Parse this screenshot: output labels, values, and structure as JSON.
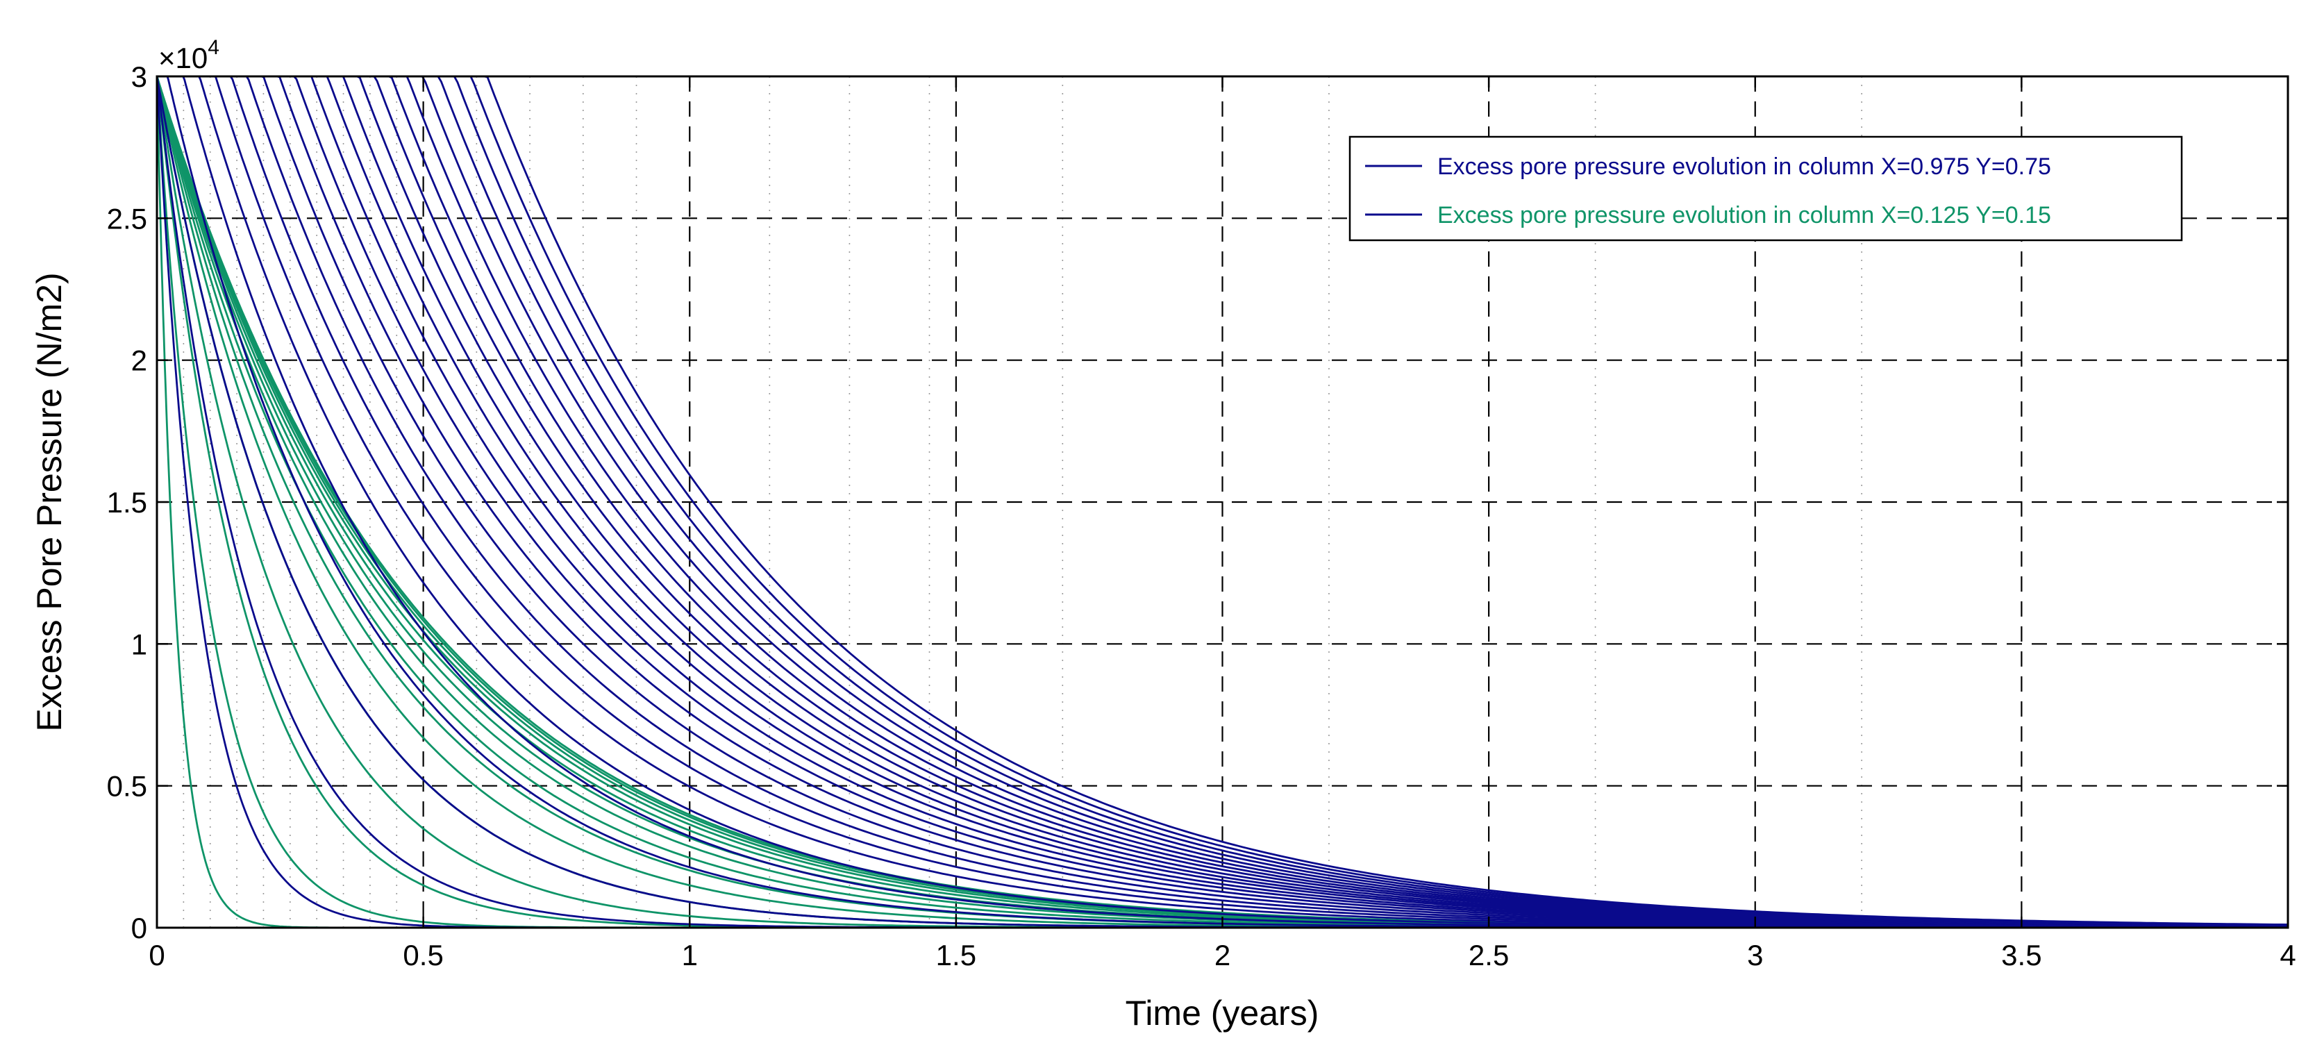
{
  "chart_data": {
    "type": "line",
    "title": "",
    "xlabel": "Time (years)",
    "ylabel": "Excess Pore Pressure (N/m2)",
    "xlim": [
      0,
      4
    ],
    "ylim": [
      0,
      30000
    ],
    "y_exponent_label": "×10",
    "y_exponent_power": "4",
    "xticks": [
      0,
      0.5,
      1,
      1.5,
      2,
      2.5,
      3,
      3.5,
      4
    ],
    "xtick_labels": [
      "0",
      "0.5",
      "1",
      "1.5",
      "2",
      "2.5",
      "3",
      "3.5",
      "4"
    ],
    "yticks": [
      0,
      5000,
      10000,
      15000,
      20000,
      25000,
      30000
    ],
    "ytick_labels": [
      "0",
      "0.5",
      "1",
      "1.5",
      "2",
      "2.5",
      "3"
    ],
    "x_minor_ticks": [
      0.05,
      0.1,
      0.15,
      0.2,
      0.25,
      0.3,
      0.35,
      0.4,
      0.45,
      0.6,
      0.7,
      0.8,
      0.9,
      1.15,
      1.3,
      1.45,
      1.7,
      2.2,
      2.7,
      3.2
    ],
    "grid": true,
    "legend": {
      "placement": "top-right",
      "entries": [
        "Excess pore pressure evolution in column X=0.975 Y=0.75",
        "Excess pore pressure evolution in column X=0.125 Y=0.15"
      ]
    },
    "colors": {
      "blue": "#0a0a8c",
      "green": "#0f9468",
      "legend_line": "#0a0a8c",
      "axis": "#000000"
    },
    "series": [
      {
        "legend_index": 0,
        "color": "#0a0a8c",
        "family": "column X=0.975 Y=0.75",
        "initial_value": 30000,
        "curves": [
          {
            "delay": 0.0,
            "rate": 12.0
          },
          {
            "delay": 0.0,
            "rate": 5.5
          },
          {
            "delay": 0.0,
            "rate": 3.5
          },
          {
            "delay": 0.02,
            "rate": 2.7
          },
          {
            "delay": 0.05,
            "rate": 2.35
          },
          {
            "delay": 0.08,
            "rate": 2.15
          },
          {
            "delay": 0.11,
            "rate": 2.02
          },
          {
            "delay": 0.14,
            "rate": 1.94
          },
          {
            "delay": 0.17,
            "rate": 1.88
          },
          {
            "delay": 0.2,
            "rate": 1.83
          },
          {
            "delay": 0.23,
            "rate": 1.79
          },
          {
            "delay": 0.26,
            "rate": 1.76
          },
          {
            "delay": 0.29,
            "rate": 1.74
          },
          {
            "delay": 0.32,
            "rate": 1.72
          },
          {
            "delay": 0.35,
            "rate": 1.71
          },
          {
            "delay": 0.38,
            "rate": 1.7
          },
          {
            "delay": 0.41,
            "rate": 1.69
          },
          {
            "delay": 0.44,
            "rate": 1.685
          },
          {
            "delay": 0.47,
            "rate": 1.68
          },
          {
            "delay": 0.5,
            "rate": 1.675
          },
          {
            "delay": 0.53,
            "rate": 1.67
          },
          {
            "delay": 0.56,
            "rate": 1.667
          },
          {
            "delay": 0.59,
            "rate": 1.664
          },
          {
            "delay": 0.62,
            "rate": 1.662
          }
        ]
      },
      {
        "legend_index": 1,
        "color": "#0f9468",
        "family": "column X=0.125 Y=0.15",
        "initial_value": 30000,
        "curves": [
          {
            "delay": 0.0,
            "rate": 28.0
          },
          {
            "delay": 0.0,
            "rate": 10.0
          },
          {
            "delay": 0.0,
            "rate": 6.0
          },
          {
            "delay": 0.0,
            "rate": 4.3
          },
          {
            "delay": 0.0,
            "rate": 3.5
          },
          {
            "delay": 0.0,
            "rate": 3.0
          },
          {
            "delay": 0.0,
            "rate": 2.7
          },
          {
            "delay": 0.0,
            "rate": 2.5
          },
          {
            "delay": 0.0,
            "rate": 2.35
          },
          {
            "delay": 0.0,
            "rate": 2.25
          },
          {
            "delay": 0.0,
            "rate": 2.17
          },
          {
            "delay": 0.0,
            "rate": 2.11
          },
          {
            "delay": 0.0,
            "rate": 2.07
          },
          {
            "delay": 0.0,
            "rate": 2.04
          },
          {
            "delay": 0.0,
            "rate": 2.02
          }
        ]
      }
    ]
  }
}
